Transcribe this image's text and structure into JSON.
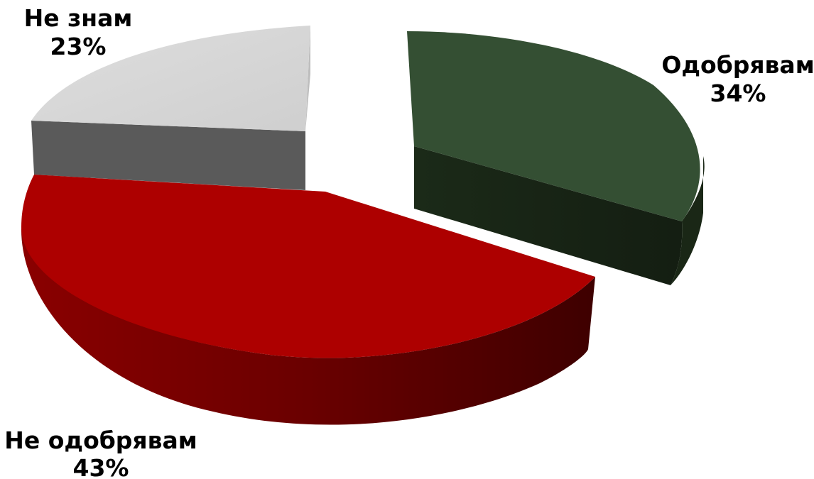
{
  "chart_data": {
    "type": "pie",
    "title": "",
    "series": [
      {
        "slices": [
          {
            "name": "Одобрявам",
            "value": 34,
            "label": "34%",
            "color": "#344f33",
            "side_color": "#1a2716"
          },
          {
            "name": "Не одобрявам",
            "value": 43,
            "label": "43%",
            "color": "#a80000",
            "side_color": "#6a0000"
          },
          {
            "name": "Не знам",
            "value": 23,
            "label": "23%",
            "color": "#d6d6d6",
            "side_color": "#5a5a5a"
          }
        ]
      }
    ],
    "exploded": true,
    "three_d": true,
    "legend": "none"
  }
}
